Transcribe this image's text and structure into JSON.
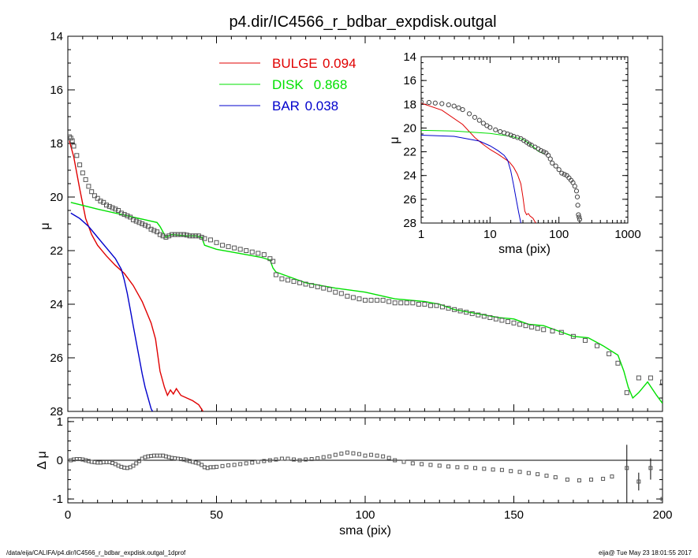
{
  "title": "p4.dir/IC4566_r_bdbar_expdisk.outgal",
  "footer": {
    "left": "/data/eija/CALIFA/p4.dir/IC4566_r_bdbar_expdisk.outgal_1dprof",
    "right": "eija@  Tue May 23 18:01:55 2017"
  },
  "colors": {
    "bulge": "#e00000",
    "disk": "#00e000",
    "bar": "#0000cc",
    "data": "#000000"
  },
  "chart_data": [
    {
      "id": "main",
      "type": "line",
      "xlabel": "sma (pix)",
      "ylabel": "μ",
      "xlim": [
        0,
        200
      ],
      "ylim": [
        28,
        14
      ],
      "xticks": [
        0,
        50,
        100,
        150,
        200
      ],
      "yticks": [
        14,
        16,
        18,
        20,
        22,
        24,
        26,
        28
      ],
      "legend": [
        {
          "name": "BULGE",
          "value": "0.094",
          "color": "#e00000"
        },
        {
          "name": "DISK",
          "value": "0.868",
          "color": "#00e000"
        },
        {
          "name": "BAR",
          "value": "0.038",
          "color": "#0000cc"
        }
      ],
      "series": [
        {
          "name": "BULGE",
          "color": "#e00000",
          "x": [
            0.5,
            2,
            4,
            6,
            8,
            10,
            13,
            16,
            19,
            22,
            25,
            28,
            29.5,
            31,
            32.5,
            33.5,
            34.5,
            35.5,
            36.5,
            38,
            40,
            42,
            44,
            45.5
          ],
          "y": [
            17.9,
            18.5,
            19.7,
            20.8,
            21.4,
            21.8,
            22.2,
            22.55,
            22.85,
            23.3,
            23.9,
            24.7,
            25.3,
            26.5,
            27.1,
            27.4,
            27.2,
            27.35,
            27.15,
            27.4,
            27.5,
            27.6,
            27.75,
            28.0
          ]
        },
        {
          "name": "DISK",
          "color": "#00e000",
          "x": [
            1,
            10,
            20,
            30,
            31,
            33,
            35,
            40,
            43,
            45,
            46,
            50,
            55,
            60,
            65,
            68,
            69,
            70,
            75,
            80,
            90,
            100,
            110,
            120,
            125,
            130,
            135,
            140,
            145,
            150,
            155,
            160,
            165,
            170,
            175,
            180,
            185,
            187,
            188.5,
            190,
            192,
            195,
            198,
            200
          ],
          "y": [
            20.2,
            20.45,
            20.7,
            20.95,
            21.1,
            21.5,
            21.4,
            21.45,
            21.45,
            21.5,
            21.8,
            21.95,
            22.05,
            22.15,
            22.25,
            22.35,
            22.65,
            22.8,
            23.0,
            23.2,
            23.4,
            23.55,
            23.8,
            23.9,
            24.0,
            24.2,
            24.3,
            24.4,
            24.5,
            24.55,
            24.75,
            24.8,
            25.0,
            25.2,
            25.25,
            25.55,
            25.9,
            26.5,
            27.1,
            27.5,
            27.3,
            26.9,
            27.4,
            27.7
          ]
        },
        {
          "name": "BAR",
          "color": "#0000cc",
          "x": [
            1,
            4,
            7,
            10,
            13,
            16,
            18,
            19,
            20,
            21,
            22,
            23,
            24,
            25,
            26,
            27,
            28,
            28.5
          ],
          "y": [
            20.6,
            20.8,
            21.1,
            21.5,
            21.9,
            22.3,
            22.7,
            23.1,
            23.6,
            24.2,
            24.8,
            25.4,
            26.0,
            26.6,
            27.1,
            27.5,
            27.9,
            28.0
          ]
        },
        {
          "name": "data",
          "color": "#000000",
          "marker": "square",
          "x": [
            0.5,
            1,
            1.5,
            2,
            3,
            4,
            5,
            6,
            7,
            8,
            9,
            10,
            11,
            12,
            13,
            14,
            15,
            16,
            17,
            18,
            19,
            20,
            21,
            22,
            23,
            24,
            25,
            26,
            27,
            28,
            29,
            30,
            31,
            32,
            33,
            34,
            35,
            36,
            37,
            38,
            39,
            40,
            41,
            42,
            43,
            44,
            45,
            46,
            48,
            50,
            52,
            54,
            56,
            58,
            60,
            62,
            64,
            66,
            68,
            69,
            70,
            72,
            74,
            76,
            78,
            80,
            82,
            84,
            86,
            88,
            90,
            92,
            94,
            96,
            98,
            100,
            102,
            104,
            106,
            108,
            110,
            112,
            114,
            116,
            118,
            120,
            122,
            124,
            126,
            128,
            130,
            132,
            134,
            136,
            138,
            140,
            142,
            144,
            146,
            148,
            150,
            152,
            154,
            156,
            158,
            160,
            163,
            166,
            170,
            174,
            178,
            182,
            185,
            188,
            192,
            196,
            200
          ],
          "y": [
            17.75,
            17.8,
            17.9,
            18.1,
            18.45,
            18.8,
            19.1,
            19.35,
            19.6,
            19.8,
            19.95,
            20.05,
            20.15,
            20.2,
            20.3,
            20.35,
            20.4,
            20.45,
            20.5,
            20.6,
            20.65,
            20.7,
            20.75,
            20.85,
            20.9,
            20.95,
            21.0,
            21.05,
            21.1,
            21.2,
            21.25,
            21.3,
            21.4,
            21.45,
            21.5,
            21.45,
            21.4,
            21.4,
            21.4,
            21.4,
            21.4,
            21.42,
            21.45,
            21.45,
            21.45,
            21.45,
            21.5,
            21.55,
            21.6,
            21.7,
            21.8,
            21.85,
            21.9,
            21.95,
            22.0,
            22.05,
            22.1,
            22.15,
            22.3,
            22.4,
            22.9,
            23.05,
            23.1,
            23.15,
            23.2,
            23.25,
            23.3,
            23.35,
            23.4,
            23.45,
            23.55,
            23.6,
            23.7,
            23.75,
            23.8,
            23.85,
            23.85,
            23.85,
            23.85,
            23.9,
            23.95,
            23.95,
            23.95,
            23.95,
            24.0,
            24.0,
            24.05,
            24.05,
            24.1,
            24.15,
            24.2,
            24.25,
            24.3,
            24.35,
            24.4,
            24.45,
            24.5,
            24.55,
            24.6,
            24.65,
            24.7,
            24.75,
            24.8,
            24.85,
            24.9,
            24.95,
            25.0,
            25.05,
            25.2,
            25.35,
            25.55,
            25.85,
            26.2,
            27.3,
            26.75,
            26.75,
            26.9
          ]
        }
      ]
    },
    {
      "id": "inset",
      "type": "line",
      "xlabel": "sma (pix)",
      "ylabel": "μ",
      "xscale": "log",
      "xlim": [
        1,
        1000
      ],
      "ylim": [
        28,
        14
      ],
      "xticks": [
        1,
        10,
        100,
        1000
      ],
      "yticks": [
        14,
        16,
        18,
        20,
        22,
        24,
        26,
        28
      ],
      "series": [
        {
          "name": "BULGE",
          "color": "#e00000",
          "x": [
            1,
            2,
            4,
            6,
            8,
            10,
            13,
            16,
            19,
            22,
            25,
            28,
            30,
            32,
            34,
            36,
            38,
            42,
            46
          ],
          "y": [
            17.9,
            18.5,
            19.7,
            20.8,
            21.4,
            21.8,
            22.2,
            22.55,
            22.85,
            23.3,
            23.9,
            24.7,
            25.8,
            27.0,
            27.3,
            27.2,
            27.4,
            27.6,
            28.0
          ]
        },
        {
          "name": "DISK",
          "color": "#00e000",
          "x": [
            1,
            3,
            10,
            20,
            30,
            40,
            50,
            60
          ],
          "y": [
            20.2,
            20.25,
            20.45,
            20.7,
            20.95,
            21.45,
            21.95,
            22.15
          ]
        },
        {
          "name": "BAR",
          "color": "#0000cc",
          "x": [
            1,
            3,
            7,
            10,
            13,
            16,
            18,
            20,
            22,
            24,
            26,
            28
          ],
          "y": [
            20.6,
            20.7,
            21.1,
            21.5,
            21.9,
            22.3,
            22.7,
            23.6,
            24.8,
            26.0,
            27.1,
            28.0
          ]
        },
        {
          "name": "data",
          "color": "#000000",
          "marker": "circle",
          "x": [
            1,
            1.3,
            1.6,
            2,
            2.5,
            3,
            3.5,
            4,
            5,
            6,
            7,
            8,
            9,
            10,
            12,
            14,
            16,
            18,
            20,
            22,
            25,
            28,
            31,
            34,
            37,
            40,
            45,
            50,
            55,
            60,
            65,
            70,
            75,
            80,
            90,
            100,
            110,
            120,
            130,
            140,
            150,
            160,
            170,
            180,
            185,
            188,
            192,
            196,
            200
          ],
          "y": [
            17.8,
            17.85,
            17.9,
            17.95,
            18.05,
            18.15,
            18.3,
            18.45,
            18.8,
            19.1,
            19.35,
            19.6,
            19.8,
            19.95,
            20.15,
            20.3,
            20.4,
            20.5,
            20.6,
            20.7,
            20.8,
            20.9,
            21.05,
            21.2,
            21.35,
            21.45,
            21.6,
            21.75,
            21.9,
            22.0,
            22.1,
            22.3,
            22.6,
            22.95,
            23.2,
            23.5,
            23.8,
            23.9,
            24.0,
            24.2,
            24.4,
            24.6,
            24.9,
            25.3,
            25.8,
            26.5,
            27.3,
            27.5,
            27.7
          ]
        }
      ]
    },
    {
      "id": "residual",
      "type": "scatter",
      "xlabel": "sma (pix)",
      "ylabel": "Δ μ",
      "xlim": [
        0,
        200
      ],
      "ylim": [
        -1.1,
        1.1
      ],
      "yticks": [
        1,
        0,
        -1
      ],
      "x": [
        1,
        2,
        3,
        4,
        5,
        6,
        7,
        8,
        9,
        10,
        11,
        12,
        13,
        14,
        15,
        16,
        17,
        18,
        19,
        20,
        21,
        22,
        23,
        24,
        25,
        26,
        27,
        28,
        29,
        30,
        31,
        32,
        33,
        34,
        35,
        36,
        37,
        38,
        39,
        40,
        41,
        42,
        43,
        44,
        45,
        46,
        47,
        48,
        49,
        50,
        52,
        54,
        56,
        58,
        60,
        62,
        64,
        66,
        68,
        70,
        72,
        74,
        76,
        78,
        80,
        82,
        84,
        86,
        88,
        90,
        92,
        94,
        96,
        98,
        100,
        102,
        104,
        106,
        108,
        110,
        113,
        116,
        119,
        122,
        125,
        128,
        131,
        134,
        137,
        140,
        143,
        146,
        149,
        152,
        155,
        158,
        161,
        164,
        168,
        172,
        176,
        180,
        183,
        188,
        192,
        196,
        200
      ],
      "y": [
        0.0,
        0.02,
        0.03,
        0.03,
        0.02,
        0.0,
        -0.02,
        -0.04,
        -0.05,
        -0.06,
        -0.06,
        -0.05,
        -0.05,
        -0.05,
        -0.07,
        -0.1,
        -0.14,
        -0.17,
        -0.19,
        -0.2,
        -0.18,
        -0.14,
        -0.08,
        -0.02,
        0.04,
        0.08,
        0.1,
        0.11,
        0.12,
        0.12,
        0.12,
        0.12,
        0.1,
        0.08,
        0.06,
        0.05,
        0.04,
        0.03,
        0.02,
        0.0,
        -0.02,
        -0.04,
        -0.06,
        -0.08,
        -0.12,
        -0.18,
        -0.2,
        -0.18,
        -0.18,
        -0.17,
        -0.15,
        -0.13,
        -0.12,
        -0.1,
        -0.08,
        -0.06,
        -0.04,
        -0.02,
        0.0,
        0.02,
        0.04,
        0.04,
        0.02,
        0.0,
        0.02,
        0.03,
        0.05,
        0.08,
        0.1,
        0.14,
        0.17,
        0.2,
        0.18,
        0.16,
        0.12,
        0.14,
        0.12,
        0.1,
        0.06,
        0.0,
        -0.04,
        -0.08,
        -0.1,
        -0.12,
        -0.14,
        -0.16,
        -0.18,
        -0.18,
        -0.2,
        -0.22,
        -0.24,
        -0.25,
        -0.28,
        -0.3,
        -0.33,
        -0.36,
        -0.4,
        -0.44,
        -0.5,
        -0.52,
        -0.5,
        -0.48,
        -0.42,
        -0.2,
        -0.55,
        -0.2,
        -1.0
      ],
      "errorbars": [
        {
          "x": 188,
          "lo": -1.1,
          "hi": 0.4
        },
        {
          "x": 192,
          "lo": -0.78,
          "hi": -0.32
        },
        {
          "x": 196,
          "lo": -0.5,
          "hi": 0.05
        }
      ]
    }
  ]
}
